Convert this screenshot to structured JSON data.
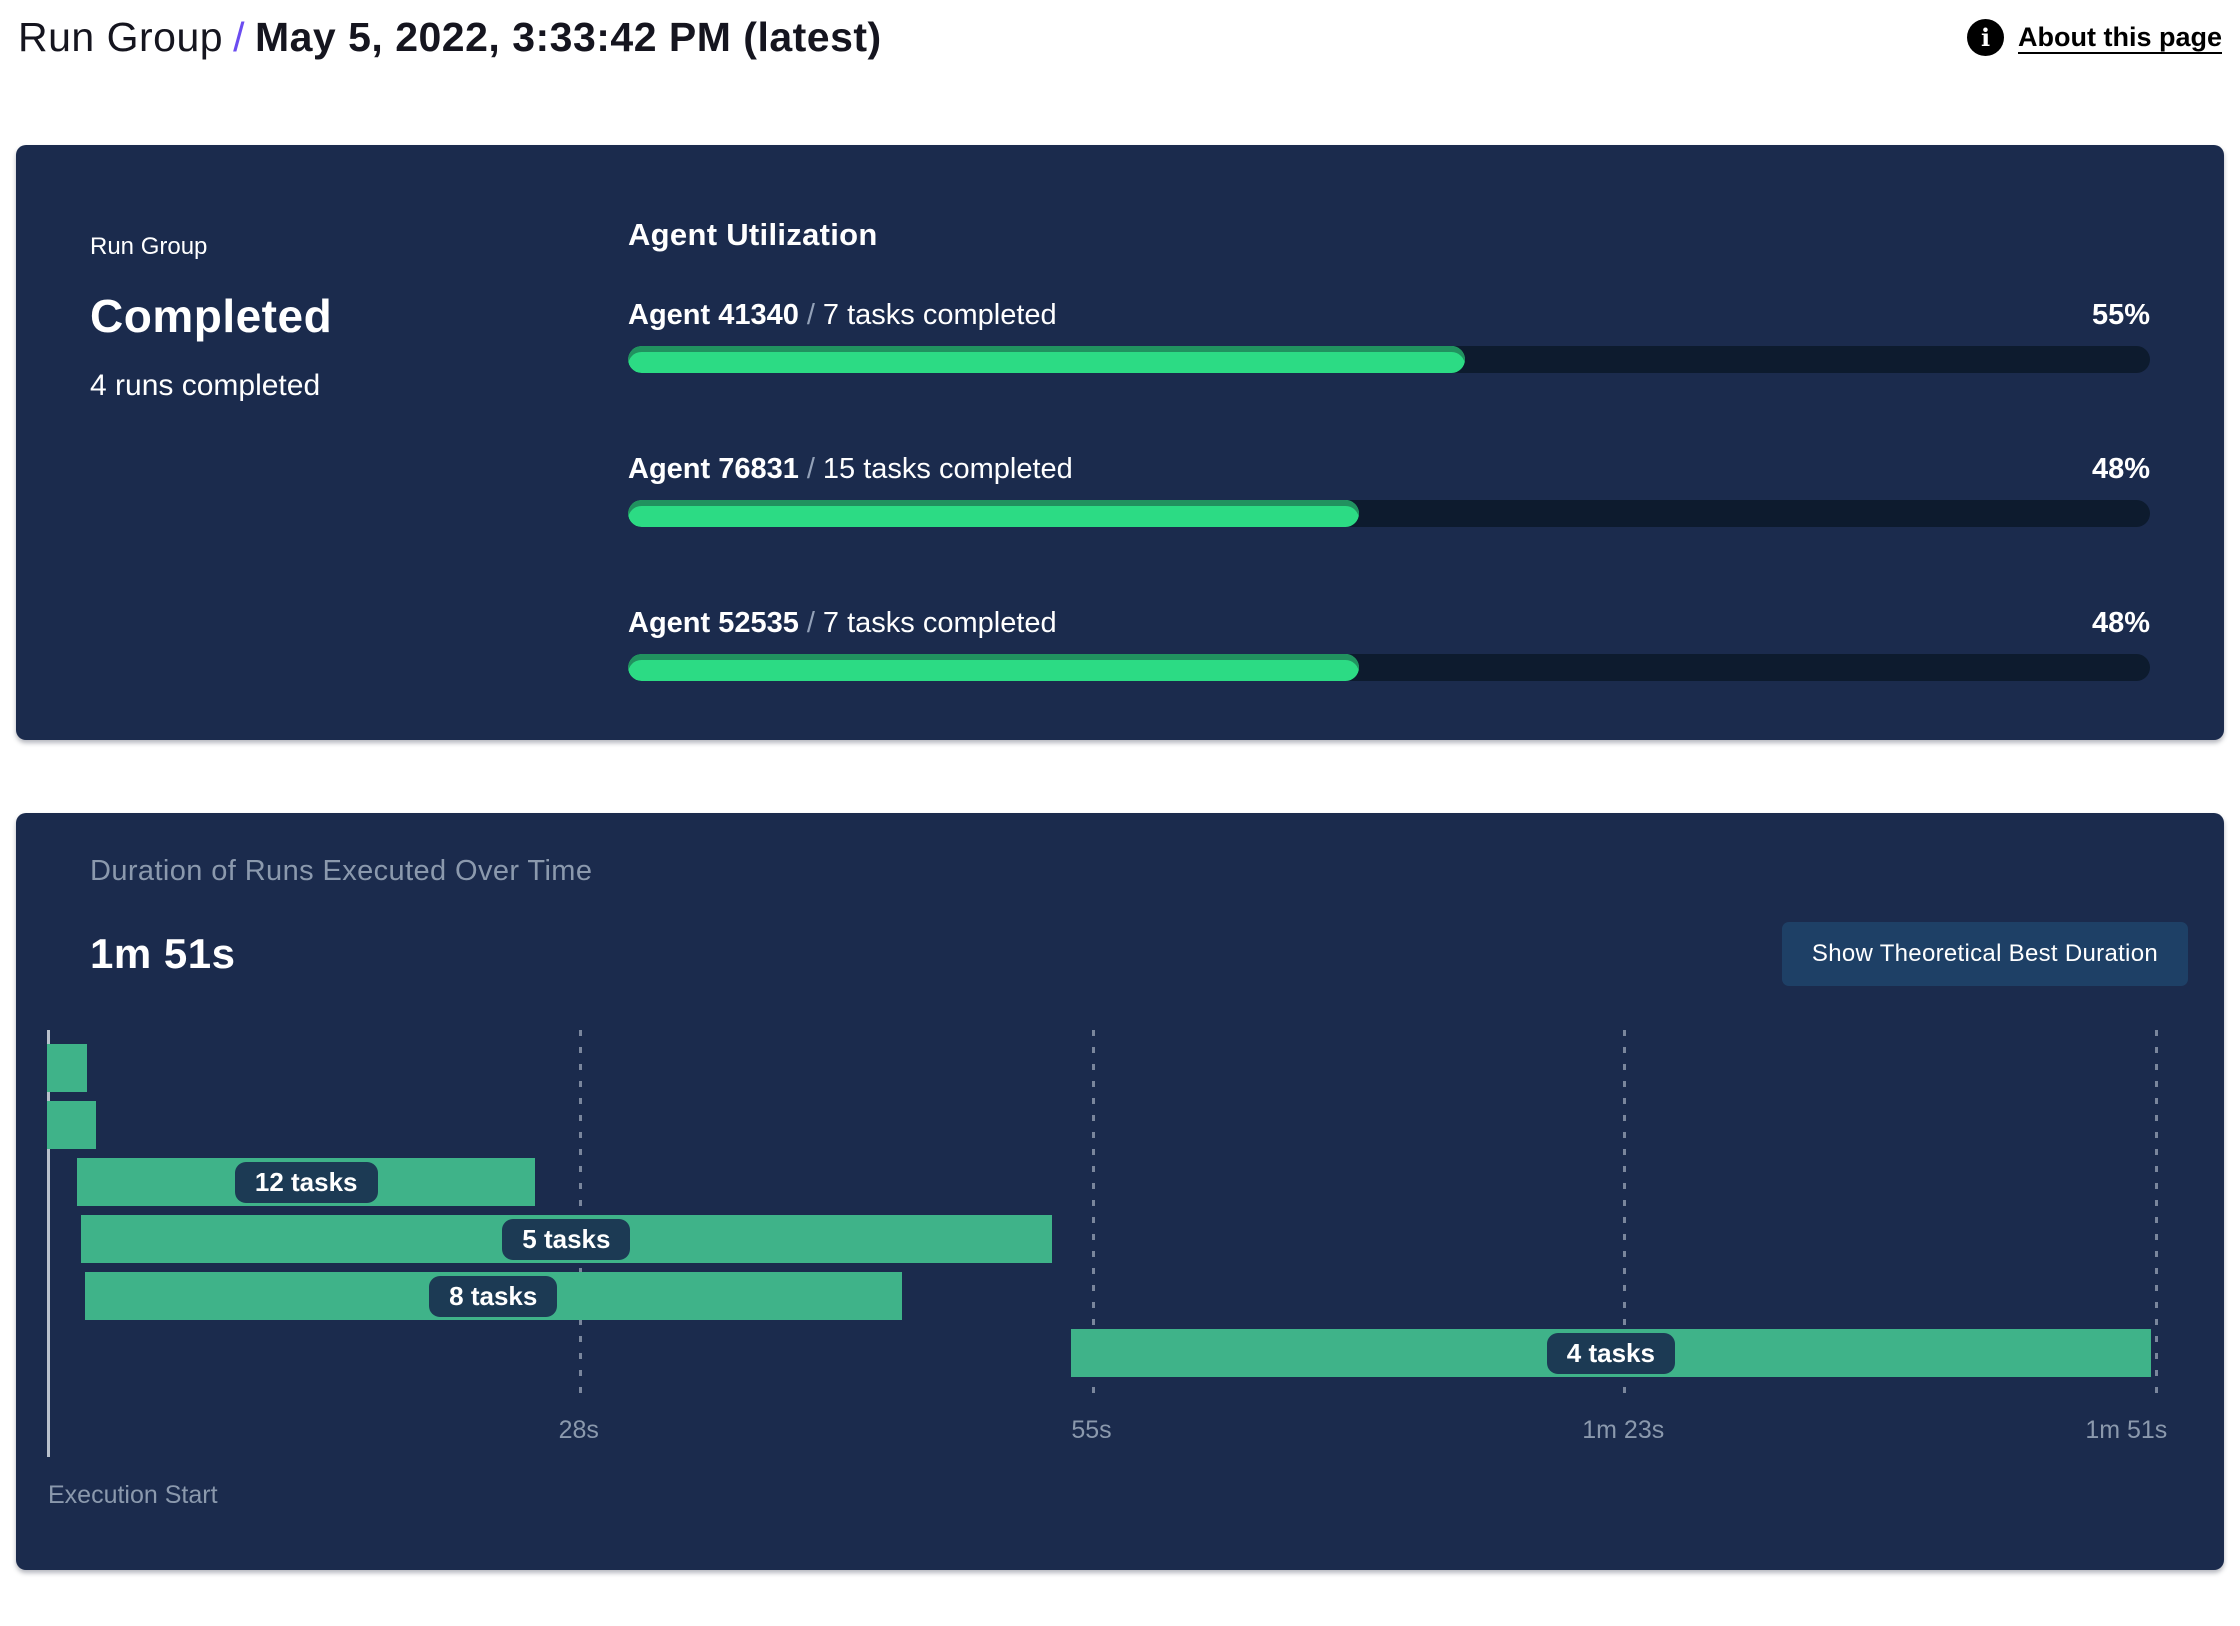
{
  "header": {
    "breadcrumb_prefix": "Run Group",
    "breadcrumb_separator": "/",
    "breadcrumb_current": "May 5, 2022, 3:33:42 PM (latest)",
    "about_link_label": "About this page",
    "info_icon": "info-icon"
  },
  "status_card": {
    "label": "Run Group",
    "status": "Completed",
    "runs_summary": "4 runs completed"
  },
  "agent_utilization": {
    "heading": "Agent Utilization",
    "agents": [
      {
        "name": "Agent 41340",
        "separator": "/",
        "tasks_label": "7 tasks completed",
        "percent": 55,
        "percent_label": "55%"
      },
      {
        "name": "Agent 76831",
        "separator": "/",
        "tasks_label": "15 tasks completed",
        "percent": 48,
        "percent_label": "48%"
      },
      {
        "name": "Agent 52535",
        "separator": "/",
        "tasks_label": "7 tasks completed",
        "percent": 48,
        "percent_label": "48%"
      }
    ]
  },
  "duration_panel": {
    "subtitle": "Duration of Runs Executed Over Time",
    "total_duration_label": "1m 51s",
    "button_label": "Show Theoretical Best Duration",
    "axis_origin_label": "Execution Start"
  },
  "chart_data": {
    "type": "bar",
    "subtype": "gantt-timeline",
    "title": "Duration of Runs Executed Over Time",
    "total_duration": "1m 51s",
    "x_axis": {
      "unit": "seconds",
      "min": 0,
      "max": 111,
      "origin_label": "Execution Start"
    },
    "ticks": [
      {
        "t": 28,
        "label": "28s"
      },
      {
        "t": 55,
        "label": "55s"
      },
      {
        "t": 83,
        "label": "1m 23s"
      },
      {
        "t": 111,
        "label": "1m 51s"
      }
    ],
    "runs": [
      {
        "start_s": 0,
        "end_s": 2.1,
        "label": null
      },
      {
        "start_s": 0,
        "end_s": 2.6,
        "label": null
      },
      {
        "start_s": 1.6,
        "end_s": 25.7,
        "label": "12 tasks"
      },
      {
        "start_s": 1.8,
        "end_s": 52.9,
        "label": "5 tasks"
      },
      {
        "start_s": 2.0,
        "end_s": 45.0,
        "label": "8 tasks"
      },
      {
        "start_s": 53.9,
        "end_s": 110.8,
        "label": "4 tasks"
      }
    ],
    "grid": "dotted-vertical",
    "legend": "none"
  },
  "colors": {
    "panel_navy": "#1b2b4d",
    "progress_track": "#0d1b2e",
    "progress_fill": "#2cdb84",
    "progress_fill_edge": "#21925f",
    "gantt_bar_teal": "#3fb389",
    "task_pill_navy": "#1c3a54",
    "button_navy": "#1e4066",
    "breadcrumb_slash_purple": "#6b4cf0",
    "muted_text": "#8b99ad"
  }
}
